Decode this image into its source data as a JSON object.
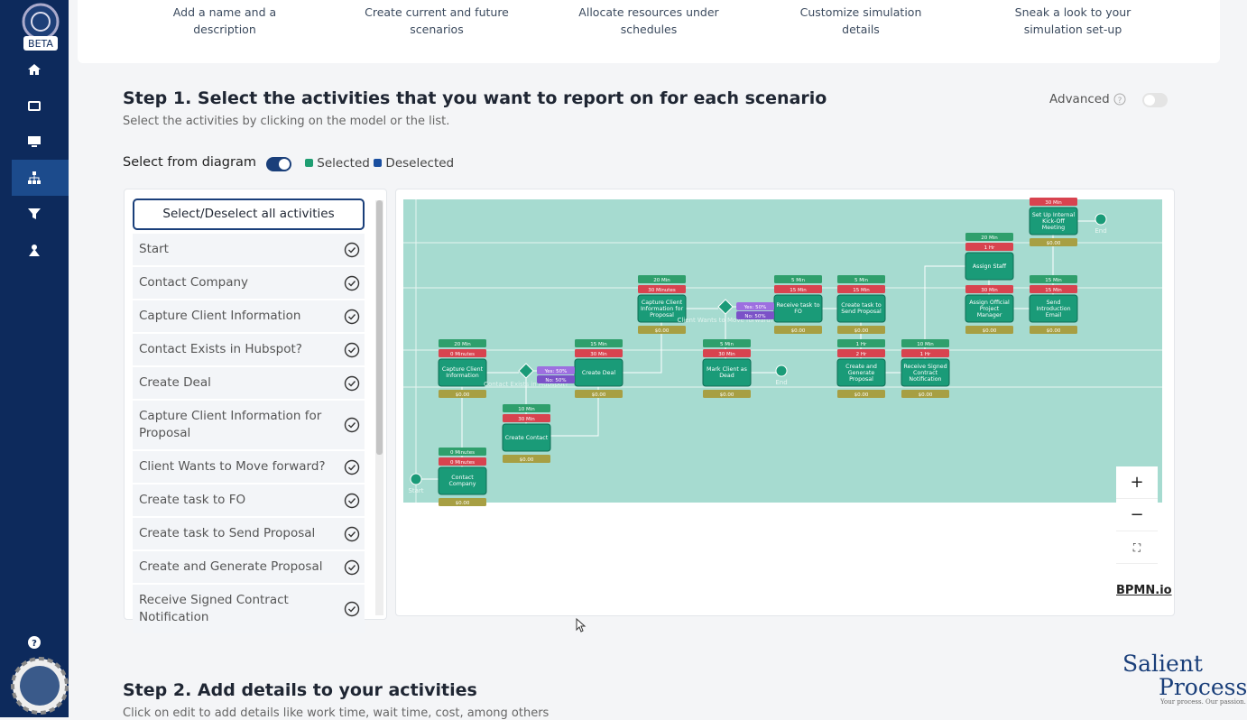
{
  "sidebar": {
    "badge": "BETA"
  },
  "steps": [
    "Add a name and a description",
    "Create current and future scenarios",
    "Allocate resources under schedules",
    "Customize simulation details",
    "Sneak a look to your simulation set-up"
  ],
  "step1": {
    "title": "Step 1. Select the activities that you want to report on for each scenario",
    "subtitle": "Select the activities by clicking on the model or the list.",
    "advanced": "Advanced",
    "select_from_diagram": "Select from diagram",
    "legend": [
      "Selected",
      "Deselected"
    ]
  },
  "list": {
    "button": "Select/Deselect all activities",
    "items": [
      "Start",
      "Contact Company",
      "Capture Client Information",
      "Contact Exists in Hubspot?",
      "Create Deal",
      "Capture Client Information for Proposal",
      "Client Wants to Move forward?",
      "Create task to FO",
      "Create task to Send Proposal",
      "Create and Generate Proposal",
      "Receive Signed Contract Notification"
    ]
  },
  "diagram": {
    "nodes": [
      {
        "label": "Capture Client Information",
        "chips": [
          "20 Min",
          "0 Minutes"
        ],
        "cost": "$0.00"
      },
      {
        "label": "Contact Company",
        "chips": [
          "0 Minutes",
          "0 Minutes"
        ],
        "cost": "$0.00"
      },
      {
        "label": "Create Contact",
        "chips": [
          "10 Min",
          "30 Min"
        ],
        "cost": "$0.00"
      },
      {
        "label": "Create Deal",
        "chips": [
          "15 Min",
          "30 Min"
        ],
        "cost": "$0.00"
      },
      {
        "label": "Capture Client Information for Proposal",
        "chips": [
          "20 Min",
          "30 Minutes"
        ],
        "cost": "$0.00"
      },
      {
        "label": "Mark Client as Dead",
        "chips": [
          "5 Min",
          "30 Min"
        ],
        "cost": "$0.00"
      },
      {
        "label": "Receive task to FO",
        "chips": [
          "5 Min",
          "15 Min"
        ],
        "cost": "$0.00"
      },
      {
        "label": "Create task to Send Proposal",
        "chips": [
          "5 Min",
          "15 Min"
        ],
        "cost": "$0.00"
      },
      {
        "label": "Create and Generate Proposal",
        "chips": [
          "1 Hr",
          "2 Hr"
        ],
        "cost": "$0.00"
      },
      {
        "label": "Receive Signed Contract Notification",
        "chips": [
          "10 Min",
          "1 Hr"
        ],
        "cost": "$0.00"
      },
      {
        "label": "Assign Staff",
        "chips": [
          "20 Min",
          "1 Hr"
        ]
      },
      {
        "label": "Assign Official Project Manager",
        "chips": [
          "30 Min"
        ],
        "cost": "$0.00"
      },
      {
        "label": "Send Introduction Email",
        "chips": [
          "15 Min",
          "15 Min"
        ],
        "cost": "$0.00"
      },
      {
        "label": "Set Up Internal Kick-Off Meeting",
        "chips": [
          "30 Min"
        ],
        "cost": "$0.00"
      }
    ],
    "events": [
      "Start",
      "End",
      "End"
    ],
    "gateways": [
      {
        "label": "Contact Exists in Hubspot?",
        "yes": "Yes: 50%",
        "no": "No: 50%"
      },
      {
        "label": "Client Wants to Move forward?",
        "yes": "Yes: 50%",
        "no": "No: 50%"
      }
    ],
    "zoom_in": "+",
    "zoom_out": "−",
    "credit": "BPMN.io"
  },
  "logo": {
    "line1": "Salient",
    "line2": "Process",
    "tagline": "Your process. Our passion."
  },
  "step2": {
    "title": "Step 2. Add details to your activities",
    "subtitle": "Click on edit to add details like work time, wait time, cost, among others"
  }
}
